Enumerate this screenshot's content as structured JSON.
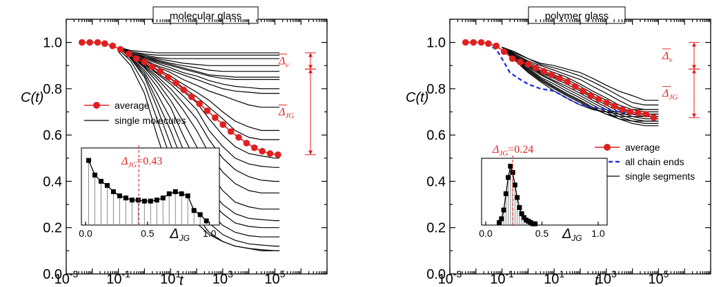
{
  "chart_data": [
    {
      "type": "line",
      "title": "molecular glass",
      "xlabel": "t",
      "ylabel": "C(t)",
      "xscale": "log",
      "xlim": [
        0.001,
        10000000
      ],
      "ylim": [
        0.0,
        1.1
      ],
      "x_ticks": [
        {
          "base": "10",
          "exp": "-3"
        },
        {
          "base": "10",
          "exp": "-1"
        },
        {
          "base": "10",
          "exp": "1"
        },
        {
          "base": "10",
          "exp": "3"
        },
        {
          "base": "10",
          "exp": "5"
        }
      ],
      "y_ticks": [
        "0.0",
        "0.2",
        "0.4",
        "0.6",
        "0.8",
        "1.0"
      ],
      "legend": {
        "position": "middle-left",
        "entries": [
          "average",
          "single molecules"
        ]
      },
      "average_series": {
        "name": "average",
        "color": "#e02020",
        "x": [
          0.004,
          0.008,
          0.016,
          0.03,
          0.06,
          0.12,
          0.25,
          0.5,
          1,
          2,
          4,
          8,
          16,
          32,
          64,
          128,
          256,
          512,
          1024,
          2048,
          4096,
          8192,
          16384,
          32768,
          65536,
          131072
        ],
        "y": [
          1.0,
          1.0,
          1.0,
          0.995,
          0.985,
          0.97,
          0.95,
          0.93,
          0.915,
          0.895,
          0.875,
          0.85,
          0.825,
          0.795,
          0.765,
          0.735,
          0.705,
          0.675,
          0.645,
          0.615,
          0.59,
          0.565,
          0.545,
          0.53,
          0.52,
          0.515
        ]
      },
      "single_curves": {
        "name": "single molecules",
        "color": "#000000",
        "x": [
          0.1,
          0.3,
          1,
          3,
          10,
          30,
          100,
          300,
          1000,
          3000,
          10000,
          30000,
          100000,
          150000
        ],
        "y": [
          [
            0.98,
            0.965,
            0.96,
            0.955,
            0.955,
            0.955,
            0.955,
            0.955,
            0.955,
            0.955,
            0.955,
            0.955,
            0.955,
            0.955
          ],
          [
            0.98,
            0.96,
            0.95,
            0.945,
            0.945,
            0.945,
            0.945,
            0.945,
            0.945,
            0.945,
            0.945,
            0.945,
            0.945,
            0.945
          ],
          [
            0.98,
            0.96,
            0.945,
            0.935,
            0.93,
            0.93,
            0.93,
            0.93,
            0.93,
            0.93,
            0.93,
            0.93,
            0.93,
            0.93
          ],
          [
            0.98,
            0.955,
            0.94,
            0.93,
            0.92,
            0.91,
            0.905,
            0.9,
            0.9,
            0.9,
            0.9,
            0.9,
            0.9,
            0.9
          ],
          [
            0.98,
            0.955,
            0.94,
            0.925,
            0.91,
            0.9,
            0.89,
            0.88,
            0.875,
            0.875,
            0.875,
            0.875,
            0.875,
            0.875
          ],
          [
            0.98,
            0.955,
            0.935,
            0.92,
            0.905,
            0.89,
            0.875,
            0.86,
            0.855,
            0.85,
            0.85,
            0.85,
            0.85,
            0.85
          ],
          [
            0.98,
            0.955,
            0.935,
            0.915,
            0.9,
            0.885,
            0.87,
            0.855,
            0.845,
            0.84,
            0.84,
            0.84,
            0.84,
            0.84
          ],
          [
            0.98,
            0.955,
            0.93,
            0.91,
            0.89,
            0.87,
            0.855,
            0.835,
            0.82,
            0.81,
            0.805,
            0.8,
            0.8,
            0.8
          ],
          [
            0.98,
            0.95,
            0.925,
            0.9,
            0.88,
            0.86,
            0.84,
            0.82,
            0.8,
            0.79,
            0.785,
            0.78,
            0.78,
            0.78
          ],
          [
            0.98,
            0.95,
            0.92,
            0.895,
            0.87,
            0.84,
            0.815,
            0.79,
            0.77,
            0.75,
            0.73,
            0.72,
            0.72,
            0.72
          ],
          [
            0.98,
            0.95,
            0.915,
            0.885,
            0.855,
            0.82,
            0.785,
            0.75,
            0.7,
            0.66,
            0.635,
            0.62,
            0.62,
            0.62
          ],
          [
            0.98,
            0.945,
            0.915,
            0.88,
            0.845,
            0.805,
            0.765,
            0.72,
            0.67,
            0.62,
            0.59,
            0.58,
            0.58,
            0.58
          ],
          [
            0.98,
            0.945,
            0.91,
            0.87,
            0.83,
            0.79,
            0.74,
            0.67,
            0.6,
            0.55,
            0.52,
            0.51,
            0.5,
            0.5
          ],
          [
            0.98,
            0.945,
            0.905,
            0.865,
            0.82,
            0.77,
            0.71,
            0.62,
            0.55,
            0.5,
            0.475,
            0.465,
            0.46,
            0.46
          ],
          [
            0.98,
            0.94,
            0.9,
            0.855,
            0.8,
            0.74,
            0.67,
            0.58,
            0.5,
            0.45,
            0.42,
            0.405,
            0.4,
            0.4
          ],
          [
            0.98,
            0.94,
            0.895,
            0.845,
            0.78,
            0.71,
            0.62,
            0.52,
            0.44,
            0.39,
            0.36,
            0.35,
            0.35,
            0.35
          ],
          [
            0.98,
            0.94,
            0.89,
            0.83,
            0.75,
            0.66,
            0.55,
            0.44,
            0.36,
            0.31,
            0.29,
            0.28,
            0.28,
            0.28
          ],
          [
            0.98,
            0.935,
            0.88,
            0.81,
            0.72,
            0.6,
            0.48,
            0.37,
            0.3,
            0.26,
            0.24,
            0.235,
            0.23,
            0.23
          ],
          [
            0.98,
            0.935,
            0.87,
            0.78,
            0.67,
            0.54,
            0.42,
            0.32,
            0.26,
            0.22,
            0.205,
            0.2,
            0.2,
            0.2
          ],
          [
            0.98,
            0.93,
            0.86,
            0.75,
            0.62,
            0.48,
            0.36,
            0.27,
            0.21,
            0.18,
            0.165,
            0.16,
            0.16,
            0.16
          ],
          [
            0.98,
            0.93,
            0.85,
            0.72,
            0.56,
            0.42,
            0.3,
            0.22,
            0.17,
            0.145,
            0.13,
            0.125,
            0.12,
            0.12
          ],
          [
            0.97,
            0.92,
            0.82,
            0.67,
            0.5,
            0.36,
            0.25,
            0.18,
            0.14,
            0.12,
            0.11,
            0.1,
            0.1,
            0.1
          ],
          [
            0.96,
            0.9,
            0.78,
            0.6,
            0.42,
            0.3,
            0.22,
            0.17,
            0.14,
            0.12,
            0.11,
            0.105,
            0.1,
            0.1
          ]
        ]
      },
      "annotations": {
        "delta_v": {
          "label": "Δ",
          "subscript": "v",
          "from": 0.955,
          "to": 0.885
        },
        "delta_jg": {
          "label": "Δ",
          "subscript": "JG",
          "from": 0.885,
          "to": 0.515
        }
      },
      "inset": {
        "type": "bar",
        "xlabel": "Δ",
        "xlabel_sub": "JG",
        "x_ticks": [
          "0.0",
          "0.5",
          "1.0"
        ],
        "mean_label": "Δ",
        "mean_sub": "JG",
        "mean_value": "=0.43",
        "mean": 0.43,
        "x": [
          0.025,
          0.075,
          0.125,
          0.175,
          0.225,
          0.275,
          0.325,
          0.375,
          0.425,
          0.475,
          0.525,
          0.575,
          0.625,
          0.675,
          0.725,
          0.775,
          0.825,
          0.875,
          0.925,
          0.975
        ],
        "values": [
          0.46,
          0.39,
          0.36,
          0.34,
          0.31,
          0.29,
          0.28,
          0.27,
          0.27,
          0.265,
          0.265,
          0.27,
          0.28,
          0.3,
          0.31,
          0.3,
          0.29,
          0.22,
          0.2,
          0.17
        ],
        "ylim": [
          0.15,
          0.5
        ]
      }
    },
    {
      "type": "line",
      "title": "polymer glass",
      "xlabel": "t",
      "ylabel": "C(t)",
      "xscale": "log",
      "xlim": [
        0.001,
        10000000
      ],
      "ylim": [
        0.0,
        1.1
      ],
      "x_ticks": [
        {
          "base": "10",
          "exp": "-3"
        },
        {
          "base": "10",
          "exp": "-1"
        },
        {
          "base": "10",
          "exp": "1"
        },
        {
          "base": "10",
          "exp": "3"
        },
        {
          "base": "10",
          "exp": "5"
        }
      ],
      "y_ticks": [
        "0.0",
        "0.2",
        "0.4",
        "0.6",
        "0.8",
        "1.0"
      ],
      "legend": {
        "position": "middle-right",
        "entries": [
          "average",
          "all chain ends",
          "single segments"
        ]
      },
      "average_series": {
        "name": "average",
        "color": "#e02020",
        "x": [
          0.004,
          0.008,
          0.016,
          0.03,
          0.06,
          0.12,
          0.25,
          0.5,
          1,
          2,
          4,
          8,
          16,
          32,
          64,
          128,
          256,
          512,
          1024,
          2048,
          4096,
          8192,
          16384,
          32768,
          65536
        ],
        "y": [
          1.0,
          1.0,
          1.0,
          0.995,
          0.985,
          0.96,
          0.93,
          0.915,
          0.905,
          0.89,
          0.875,
          0.86,
          0.845,
          0.83,
          0.81,
          0.79,
          0.77,
          0.755,
          0.74,
          0.725,
          0.71,
          0.7,
          0.695,
          0.69,
          0.675
        ]
      },
      "chain_ends": {
        "name": "all chain ends",
        "color": "#2233dd",
        "x": [
          0.004,
          0.01,
          0.03,
          0.06,
          0.1,
          0.2,
          0.5,
          1,
          3,
          10,
          30,
          100,
          300,
          1000,
          3000,
          10000,
          30000,
          65536
        ],
        "y": [
          1.0,
          1.0,
          0.99,
          0.97,
          0.93,
          0.87,
          0.84,
          0.82,
          0.8,
          0.79,
          0.76,
          0.73,
          0.72,
          0.71,
          0.7,
          0.695,
          0.69,
          0.675
        ]
      },
      "single_curves": {
        "name": "single segments",
        "color": "#000000",
        "x": [
          0.1,
          0.3,
          1,
          3,
          10,
          30,
          100,
          300,
          1000,
          3000,
          10000,
          30000,
          100000
        ],
        "y": [
          [
            0.98,
            0.96,
            0.93,
            0.91,
            0.9,
            0.885,
            0.87,
            0.845,
            0.815,
            0.79,
            0.77,
            0.75,
            0.75
          ],
          [
            0.98,
            0.955,
            0.93,
            0.905,
            0.89,
            0.875,
            0.855,
            0.83,
            0.8,
            0.77,
            0.74,
            0.73,
            0.73
          ],
          [
            0.98,
            0.95,
            0.92,
            0.9,
            0.88,
            0.86,
            0.84,
            0.81,
            0.78,
            0.75,
            0.72,
            0.71,
            0.71
          ],
          [
            0.98,
            0.95,
            0.915,
            0.89,
            0.87,
            0.85,
            0.82,
            0.79,
            0.76,
            0.73,
            0.71,
            0.7,
            0.7
          ],
          [
            0.98,
            0.945,
            0.91,
            0.88,
            0.86,
            0.84,
            0.81,
            0.78,
            0.75,
            0.72,
            0.7,
            0.69,
            0.69
          ],
          [
            0.98,
            0.945,
            0.905,
            0.875,
            0.85,
            0.83,
            0.8,
            0.77,
            0.74,
            0.71,
            0.69,
            0.68,
            0.68
          ],
          [
            0.98,
            0.94,
            0.9,
            0.87,
            0.845,
            0.82,
            0.79,
            0.76,
            0.73,
            0.7,
            0.68,
            0.67,
            0.67
          ],
          [
            0.98,
            0.94,
            0.9,
            0.865,
            0.835,
            0.81,
            0.78,
            0.75,
            0.72,
            0.69,
            0.67,
            0.66,
            0.66
          ],
          [
            0.98,
            0.935,
            0.895,
            0.86,
            0.83,
            0.8,
            0.77,
            0.74,
            0.71,
            0.68,
            0.66,
            0.65,
            0.65
          ],
          [
            0.98,
            0.935,
            0.89,
            0.85,
            0.82,
            0.79,
            0.76,
            0.73,
            0.7,
            0.67,
            0.65,
            0.64,
            0.64
          ],
          [
            0.98,
            0.93,
            0.885,
            0.845,
            0.81,
            0.78,
            0.75,
            0.72,
            0.69,
            0.67,
            0.66,
            0.66,
            0.66
          ],
          [
            0.98,
            0.93,
            0.88,
            0.84,
            0.805,
            0.775,
            0.745,
            0.715,
            0.69,
            0.68,
            0.68,
            0.68,
            0.68
          ],
          [
            0.98,
            0.925,
            0.875,
            0.835,
            0.8,
            0.77,
            0.74,
            0.71,
            0.7,
            0.7,
            0.71,
            0.71,
            0.71
          ],
          [
            0.98,
            0.925,
            0.87,
            0.83,
            0.79,
            0.76,
            0.73,
            0.71,
            0.7,
            0.69,
            0.69,
            0.69,
            0.69
          ]
        ]
      },
      "annotations": {
        "delta_v": {
          "label": "Δ",
          "subscript": "v",
          "from": 1.0,
          "to": 0.885
        },
        "delta_jg": {
          "label": "Δ",
          "subscript": "JG",
          "from": 0.885,
          "to": 0.675
        }
      },
      "inset": {
        "type": "histogram",
        "xlabel": "Δ",
        "xlabel_sub": "JG",
        "x_ticks": [
          "0.0",
          "0.5",
          "1.0"
        ],
        "mean_label": "Δ",
        "mean_sub": "JG",
        "mean_value": "=0.24",
        "mean": 0.24,
        "x": [
          0.12,
          0.14,
          0.16,
          0.18,
          0.2,
          0.22,
          0.24,
          0.26,
          0.28,
          0.3,
          0.32,
          0.34,
          0.36,
          0.38,
          0.4,
          0.42,
          0.44
        ],
        "values": [
          0.02,
          0.05,
          0.12,
          0.25,
          0.38,
          0.47,
          0.42,
          0.32,
          0.22,
          0.14,
          0.09,
          0.06,
          0.04,
          0.03,
          0.02,
          0.01,
          0.01
        ],
        "ylim": [
          0,
          0.5
        ]
      }
    }
  ]
}
